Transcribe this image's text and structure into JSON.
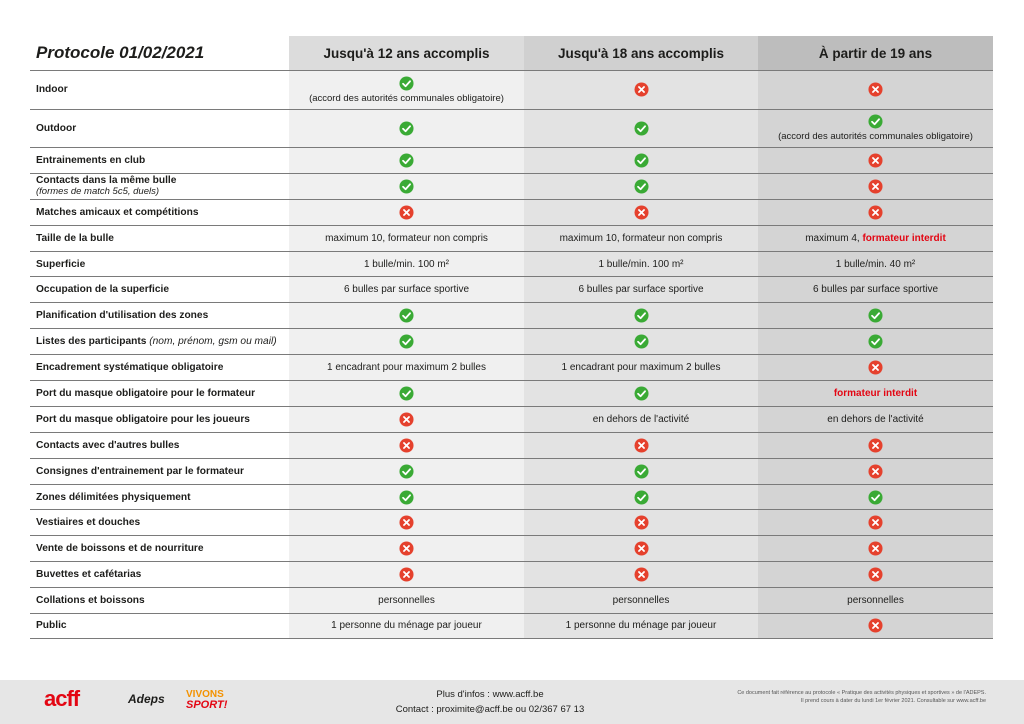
{
  "header": {
    "title": "Protocole 01/02/2021",
    "col1": "Jusqu'à 12 ans accomplis",
    "col2": "Jusqu'à 18 ans accomplis",
    "col3": "À partir de 19 ans"
  },
  "icons": {
    "check": "check-circle-icon",
    "cross": "cross-circle-icon",
    "check_color": "#3aaa35",
    "cross_color": "#e5412d"
  },
  "rows": [
    {
      "label": "Indoor",
      "cells": [
        {
          "icon": "check",
          "note": "(accord des autorités communales obligatoire)"
        },
        {
          "icon": "cross"
        },
        {
          "icon": "cross"
        }
      ]
    },
    {
      "label": "Outdoor",
      "cells": [
        {
          "icon": "check"
        },
        {
          "icon": "check"
        },
        {
          "icon": "check",
          "note": "(accord des autorités communales obligatoire)"
        }
      ]
    },
    {
      "label": "Entrainements en club",
      "cells": [
        {
          "icon": "check"
        },
        {
          "icon": "check"
        },
        {
          "icon": "cross"
        }
      ]
    },
    {
      "label": "Contacts dans la même bulle",
      "sublabel": "(formes de match 5c5, duels)",
      "cells": [
        {
          "icon": "check"
        },
        {
          "icon": "check"
        },
        {
          "icon": "cross"
        }
      ]
    },
    {
      "label": "Matches amicaux et compétitions",
      "cells": [
        {
          "icon": "cross"
        },
        {
          "icon": "cross"
        },
        {
          "icon": "cross"
        }
      ]
    },
    {
      "label": "Taille de la bulle",
      "cells": [
        {
          "text": "maximum 10, formateur non compris"
        },
        {
          "text": "maximum 10, formateur non compris"
        },
        {
          "text": "maximum 4,",
          "red": "formateur interdit"
        }
      ]
    },
    {
      "label": "Superficie",
      "cells": [
        {
          "text": "1 bulle/min. 100 m²"
        },
        {
          "text": "1 bulle/min. 100 m²"
        },
        {
          "text": "1 bulle/min. 40 m²"
        }
      ]
    },
    {
      "label": "Occupation de la superficie",
      "cells": [
        {
          "text": "6 bulles par surface sportive"
        },
        {
          "text": "6 bulles par surface sportive"
        },
        {
          "text": "6 bulles par surface sportive"
        }
      ]
    },
    {
      "label": "Planification d'utilisation des zones",
      "cells": [
        {
          "icon": "check"
        },
        {
          "icon": "check"
        },
        {
          "icon": "check"
        }
      ]
    },
    {
      "label": "Listes des participants",
      "label_suffix": "(nom, prénom, gsm ou mail)",
      "cells": [
        {
          "icon": "check"
        },
        {
          "icon": "check"
        },
        {
          "icon": "check"
        }
      ]
    },
    {
      "label": "Encadrement systématique obligatoire",
      "cells": [
        {
          "text": "1 encadrant pour maximum 2 bulles"
        },
        {
          "text": "1 encadrant pour maximum 2 bulles"
        },
        {
          "icon": "cross"
        }
      ]
    },
    {
      "label": "Port du masque obligatoire pour le formateur",
      "cells": [
        {
          "icon": "check"
        },
        {
          "icon": "check"
        },
        {
          "red": "formateur interdit"
        }
      ]
    },
    {
      "label": "Port du masque obligatoire pour les joueurs",
      "cells": [
        {
          "icon": "cross"
        },
        {
          "text": "en dehors de l'activité"
        },
        {
          "text": "en dehors de l'activité"
        }
      ]
    },
    {
      "label": "Contacts avec d'autres bulles",
      "cells": [
        {
          "icon": "cross"
        },
        {
          "icon": "cross"
        },
        {
          "icon": "cross"
        }
      ]
    },
    {
      "label": "Consignes d'entrainement par le formateur",
      "cells": [
        {
          "icon": "check"
        },
        {
          "icon": "check"
        },
        {
          "icon": "cross"
        }
      ]
    },
    {
      "label": "Zones délimitées physiquement",
      "cells": [
        {
          "icon": "check"
        },
        {
          "icon": "check"
        },
        {
          "icon": "check"
        }
      ]
    },
    {
      "label": "Vestiaires et douches",
      "cells": [
        {
          "icon": "cross"
        },
        {
          "icon": "cross"
        },
        {
          "icon": "cross"
        }
      ]
    },
    {
      "label": "Vente de boissons et de nourriture",
      "cells": [
        {
          "icon": "cross"
        },
        {
          "icon": "cross"
        },
        {
          "icon": "cross"
        }
      ]
    },
    {
      "label": "Buvettes et cafétarias",
      "cells": [
        {
          "icon": "cross"
        },
        {
          "icon": "cross"
        },
        {
          "icon": "cross"
        }
      ]
    },
    {
      "label": "Collations et boissons",
      "cells": [
        {
          "text": "personnelles"
        },
        {
          "text": "personnelles"
        },
        {
          "text": "personnelles"
        }
      ]
    },
    {
      "label": "Public",
      "cells": [
        {
          "text": "1 personne du ménage par joueur"
        },
        {
          "text": "1 personne du ménage par joueur"
        },
        {
          "icon": "cross"
        }
      ]
    }
  ],
  "footer": {
    "logo_acff": "acff",
    "logo_adeps": "Adeps",
    "logo_vivons": "VIVONS",
    "logo_sport": "SPORT!",
    "info_line1": "Plus d'infos : www.acff.be",
    "info_line2": "Contact : proximite@acff.be ou 02/367 67 13",
    "note_line1": "Ce document fait référence au protocole « Pratique des activités physiques et sportives » de l'ADEPS.",
    "note_line2": "Il prend cours à dater du lundi 1er février 2021. Consultable sur www.acff.be"
  }
}
